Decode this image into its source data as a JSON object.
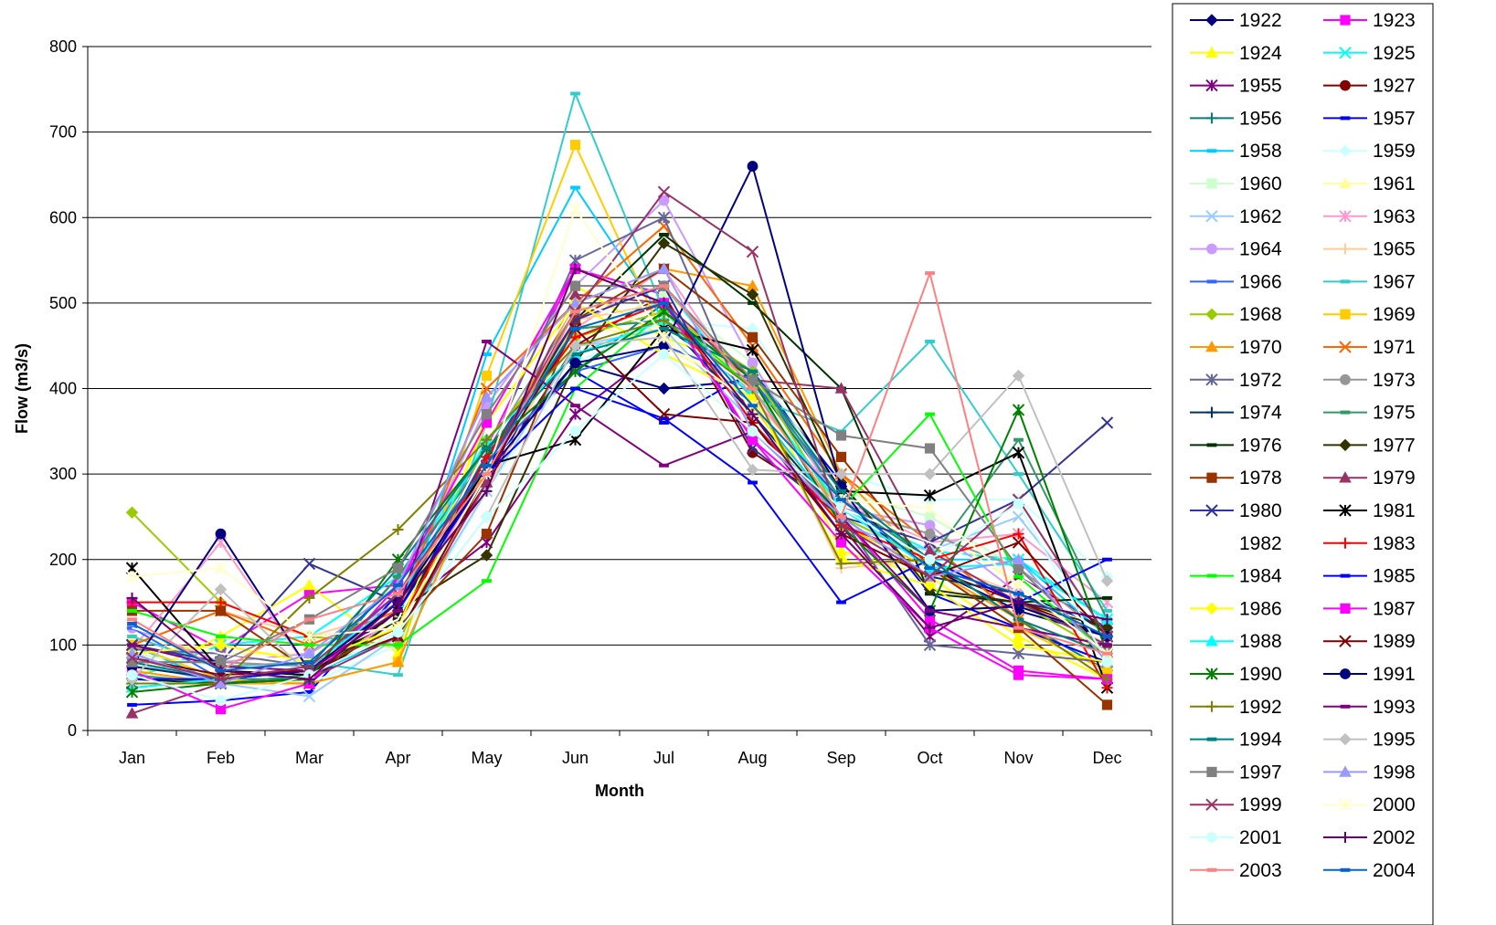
{
  "chart_data": {
    "type": "line",
    "title": "",
    "xlabel": "Month",
    "ylabel": "Flow (m3/s)",
    "ylim": [
      0,
      800
    ],
    "yticks": [
      0,
      100,
      200,
      300,
      400,
      500,
      600,
      700,
      800
    ],
    "categories": [
      "Jan",
      "Feb",
      "Mar",
      "Apr",
      "May",
      "Jun",
      "Jul",
      "Aug",
      "Sep",
      "Oct",
      "Nov",
      "Dec"
    ],
    "grid": "horizontal",
    "legend_position": "right",
    "series": [
      {
        "name": "1922",
        "color": "#000080",
        "marker": "diamond",
        "values": [
          85,
          60,
          70,
          150,
          310,
          430,
          400,
          410,
          270,
          190,
          140,
          110
        ]
      },
      {
        "name": "1923",
        "color": "#FF00FF",
        "marker": "square",
        "values": [
          150,
          95,
          160,
          170,
          330,
          540,
          510,
          340,
          250,
          130,
          70,
          60
        ]
      },
      {
        "name": "1924",
        "color": "#FFFF00",
        "marker": "triangle",
        "values": [
          60,
          110,
          170,
          90,
          370,
          520,
          460,
          420,
          210,
          180,
          110,
          60
        ]
      },
      {
        "name": "1925",
        "color": "#00FFFF",
        "marker": "x",
        "values": [
          60,
          100,
          110,
          180,
          330,
          490,
          520,
          390,
          260,
          210,
          200,
          130
        ]
      },
      {
        "name": "1955",
        "color": "#800080",
        "marker": "star",
        "values": [
          55,
          55,
          55,
          140,
          220,
          370,
          450,
          410,
          240,
          110,
          180,
          120
        ]
      },
      {
        "name": "1927",
        "color": "#800000",
        "marker": "circle",
        "values": [
          75,
          60,
          70,
          130,
          290,
          450,
          510,
          325,
          260,
          190,
          150,
          110
        ]
      },
      {
        "name": "1956",
        "color": "#008080",
        "marker": "plus",
        "values": [
          50,
          60,
          60,
          180,
          320,
          420,
          500,
          410,
          270,
          200,
          130,
          70
        ]
      },
      {
        "name": "1957",
        "color": "#0000FF",
        "marker": "dash",
        "values": [
          30,
          35,
          45,
          160,
          310,
          420,
          360,
          420,
          290,
          160,
          120,
          80
        ]
      },
      {
        "name": "1958",
        "color": "#00CCFF",
        "marker": "dash",
        "values": [
          100,
          55,
          65,
          110,
          440,
          635,
          480,
          380,
          250,
          200,
          200,
          110
        ]
      },
      {
        "name": "1959",
        "color": "#CCFFFF",
        "marker": "diamond",
        "values": [
          65,
          60,
          55,
          100,
          280,
          430,
          480,
          470,
          300,
          270,
          270,
          180
        ]
      },
      {
        "name": "1960",
        "color": "#CCFFCC",
        "marker": "square",
        "values": [
          90,
          75,
          70,
          120,
          300,
          460,
          510,
          430,
          280,
          250,
          190,
          110
        ]
      },
      {
        "name": "1961",
        "color": "#FFFF99",
        "marker": "triangle",
        "values": [
          110,
          90,
          90,
          130,
          310,
          480,
          450,
          390,
          260,
          240,
          170,
          90
        ]
      },
      {
        "name": "1962",
        "color": "#99CCFF",
        "marker": "x",
        "values": [
          80,
          55,
          40,
          110,
          280,
          450,
          470,
          360,
          240,
          210,
          250,
          120
        ]
      },
      {
        "name": "1963",
        "color": "#FF99CC",
        "marker": "star",
        "values": [
          95,
          220,
          70,
          130,
          300,
          470,
          540,
          390,
          270,
          220,
          230,
          150
        ]
      },
      {
        "name": "1964",
        "color": "#CC99FF",
        "marker": "circle",
        "values": [
          120,
          80,
          90,
          150,
          380,
          520,
          620,
          430,
          260,
          240,
          160,
          120
        ]
      },
      {
        "name": "1965",
        "color": "#FFCC99",
        "marker": "plus",
        "values": [
          100,
          140,
          110,
          140,
          280,
          480,
          500,
          400,
          190,
          200,
          160,
          100
        ]
      },
      {
        "name": "1966",
        "color": "#3366FF",
        "marker": "dash",
        "values": [
          120,
          60,
          70,
          160,
          320,
          420,
          450,
          410,
          280,
          200,
          150,
          100
        ]
      },
      {
        "name": "1967",
        "color": "#33CCCC",
        "marker": "dash",
        "values": [
          110,
          75,
          80,
          65,
          360,
          745,
          490,
          390,
          350,
          455,
          300,
          140
        ]
      },
      {
        "name": "1968",
        "color": "#99CC00",
        "marker": "diamond",
        "values": [
          255,
          150,
          110,
          100,
          340,
          460,
          490,
          420,
          250,
          200,
          150,
          90
        ]
      },
      {
        "name": "1969",
        "color": "#FFCC00",
        "marker": "square",
        "values": [
          100,
          60,
          55,
          80,
          415,
          685,
          460,
          380,
          240,
          190,
          120,
          70
        ]
      },
      {
        "name": "1970",
        "color": "#FF9900",
        "marker": "triangle",
        "values": [
          70,
          55,
          55,
          80,
          310,
          500,
          540,
          520,
          300,
          190,
          130,
          60
        ]
      },
      {
        "name": "1971",
        "color": "#FF6600",
        "marker": "x",
        "values": [
          100,
          140,
          100,
          140,
          400,
          500,
          590,
          450,
          300,
          220,
          130,
          90
        ]
      },
      {
        "name": "1972",
        "color": "#666699",
        "marker": "star",
        "values": [
          95,
          90,
          75,
          150,
          320,
          550,
          600,
          360,
          250,
          100,
          90,
          80
        ]
      },
      {
        "name": "1973",
        "color": "#969696",
        "marker": "circle",
        "values": [
          80,
          80,
          75,
          140,
          330,
          490,
          520,
          400,
          260,
          230,
          190,
          110
        ]
      },
      {
        "name": "1974",
        "color": "#003366",
        "marker": "plus",
        "values": [
          75,
          60,
          70,
          150,
          300,
          470,
          480,
          370,
          250,
          180,
          160,
          120
        ]
      },
      {
        "name": "1975",
        "color": "#339966",
        "marker": "dash",
        "values": [
          65,
          55,
          65,
          180,
          320,
          470,
          480,
          420,
          270,
          200,
          340,
          130
        ]
      },
      {
        "name": "1976",
        "color": "#003300",
        "marker": "dash",
        "values": [
          60,
          55,
          60,
          130,
          310,
          480,
          580,
          500,
          400,
          160,
          150,
          155
        ]
      },
      {
        "name": "1977",
        "color": "#333300",
        "marker": "diamond",
        "values": [
          90,
          55,
          60,
          140,
          205,
          430,
          570,
          510,
          290,
          165,
          150,
          120
        ]
      },
      {
        "name": "1978",
        "color": "#993300",
        "marker": "square",
        "values": [
          140,
          140,
          70,
          120,
          230,
          480,
          540,
          460,
          320,
          190,
          120,
          30
        ]
      },
      {
        "name": "1979",
        "color": "#993366",
        "marker": "triangle",
        "values": [
          20,
          55,
          60,
          110,
          290,
          510,
          500,
          410,
          400,
          210,
          150,
          100
        ]
      },
      {
        "name": "1980",
        "color": "#333399",
        "marker": "x",
        "values": [
          100,
          80,
          195,
          150,
          320,
          480,
          520,
          330,
          250,
          220,
          270,
          360
        ]
      },
      {
        "name": "1981",
        "color": "#000000",
        "marker": "star",
        "values": [
          190,
          70,
          65,
          140,
          310,
          340,
          470,
          445,
          280,
          275,
          325,
          50
        ]
      },
      {
        "name": "1982",
        "color": "#FFFFFF",
        "marker": "none",
        "values": [
          120,
          90,
          80,
          130,
          330,
          500,
          470,
          400,
          260,
          220,
          180,
          110
        ]
      },
      {
        "name": "1983",
        "color": "#FF0000",
        "marker": "plus",
        "values": [
          150,
          150,
          110,
          120,
          320,
          460,
          500,
          360,
          240,
          200,
          230,
          50
        ]
      },
      {
        "name": "1984",
        "color": "#00FF00",
        "marker": "dash",
        "values": [
          140,
          110,
          100,
          100,
          175,
          400,
          490,
          400,
          260,
          370,
          180,
          90
        ]
      },
      {
        "name": "1985",
        "color": "#0000FF",
        "marker": "dash",
        "values": [
          60,
          60,
          70,
          140,
          300,
          400,
          365,
          290,
          150,
          200,
          150,
          200
        ]
      },
      {
        "name": "1986",
        "color": "#FFFF00",
        "marker": "diamond",
        "values": [
          90,
          100,
          80,
          120,
          360,
          500,
          440,
          390,
          200,
          170,
          100,
          80
        ]
      },
      {
        "name": "1987",
        "color": "#FF00FF",
        "marker": "square",
        "values": [
          70,
          25,
          55,
          170,
          360,
          540,
          500,
          340,
          220,
          120,
          65,
          60
        ]
      },
      {
        "name": "1988",
        "color": "#00FFFF",
        "marker": "triangle",
        "values": [
          50,
          60,
          75,
          150,
          340,
          440,
          480,
          400,
          260,
          190,
          195,
          130
        ]
      },
      {
        "name": "1989",
        "color": "#800000",
        "marker": "x",
        "values": [
          85,
          65,
          70,
          110,
          300,
          470,
          370,
          360,
          230,
          180,
          220,
          110
        ]
      },
      {
        "name": "1990",
        "color": "#008000",
        "marker": "star",
        "values": [
          45,
          55,
          60,
          200,
          330,
          420,
          490,
          410,
          240,
          140,
          375,
          90
        ]
      },
      {
        "name": "1991",
        "color": "#000080",
        "marker": "circle",
        "values": [
          75,
          230,
          70,
          150,
          300,
          430,
          450,
          660,
          285,
          140,
          145,
          110
        ]
      },
      {
        "name": "1992",
        "color": "#808000",
        "marker": "plus",
        "values": [
          55,
          55,
          155,
          235,
          340,
          450,
          480,
          400,
          195,
          200,
          130,
          60
        ]
      },
      {
        "name": "1993",
        "color": "#800080",
        "marker": "dash",
        "values": [
          100,
          75,
          70,
          140,
          455,
          380,
          310,
          350,
          250,
          140,
          120,
          100
        ]
      },
      {
        "name": "1994",
        "color": "#008080",
        "marker": "dash",
        "values": [
          80,
          60,
          75,
          190,
          330,
          440,
          470,
          420,
          280,
          200,
          130,
          90
        ]
      },
      {
        "name": "1995",
        "color": "#C0C0C0",
        "marker": "diamond",
        "values": [
          60,
          165,
          65,
          115,
          250,
          450,
          460,
          305,
          300,
          300,
          415,
          175
        ]
      },
      {
        "name": "1997",
        "color": "#808080",
        "marker": "square",
        "values": [
          80,
          80,
          130,
          190,
          370,
          520,
          520,
          410,
          345,
          330,
          190,
          90
        ]
      },
      {
        "name": "1998",
        "color": "#9999FF",
        "marker": "triangle",
        "values": [
          90,
          55,
          90,
          170,
          390,
          500,
          540,
          350,
          250,
          180,
          200,
          80
        ]
      },
      {
        "name": "1999",
        "color": "#993366",
        "marker": "x",
        "values": [
          85,
          60,
          75,
          160,
          310,
          490,
          630,
          560,
          240,
          180,
          270,
          110
        ]
      },
      {
        "name": "2000",
        "color": "#FFFFCC",
        "marker": "star",
        "values": [
          180,
          190,
          110,
          120,
          300,
          610,
          460,
          380,
          270,
          260,
          170,
          90
        ]
      },
      {
        "name": "2001",
        "color": "#CCFFFF",
        "marker": "circle",
        "values": [
          65,
          35,
          65,
          115,
          250,
          350,
          440,
          350,
          260,
          200,
          265,
          80
        ]
      },
      {
        "name": "2002",
        "color": "#660066",
        "marker": "plus",
        "values": [
          155,
          70,
          60,
          150,
          280,
          540,
          500,
          370,
          230,
          120,
          150,
          130
        ]
      },
      {
        "name": "2003",
        "color": "#FF8080",
        "marker": "dash",
        "values": [
          130,
          70,
          130,
          160,
          300,
          490,
          520,
          400,
          250,
          535,
          120,
          90
        ]
      },
      {
        "name": "2004",
        "color": "#0066CC",
        "marker": "dash",
        "values": [
          125,
          70,
          80,
          170,
          310,
          470,
          500,
          380,
          270,
          190,
          160,
          110
        ]
      }
    ]
  }
}
